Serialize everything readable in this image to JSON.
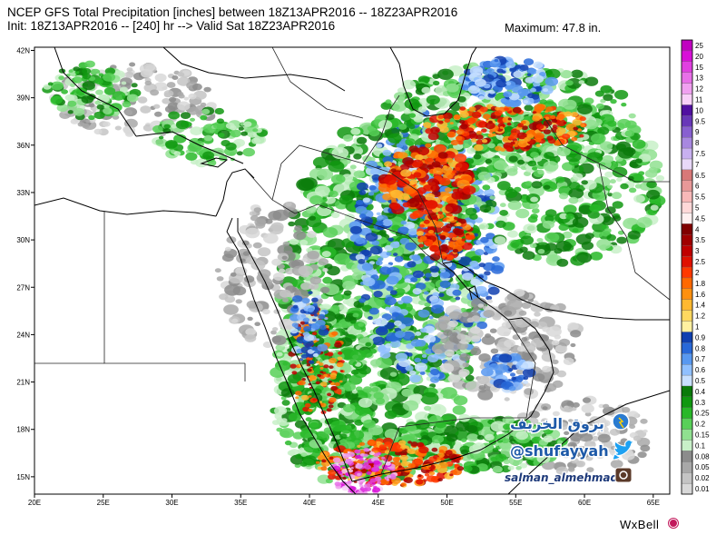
{
  "header": {
    "title_line1": "NCEP GFS Total Precipitation [inches] between 18Z13APR2016 -- 18Z23APR2016",
    "title_line2": "Init: 18Z13APR2016 -- [240] hr --> Valid Sat 18Z23APR2016",
    "maximum": "Maximum: 47.8 in."
  },
  "axes": {
    "lat_labels": [
      "42N",
      "39N",
      "36N",
      "33N",
      "30N",
      "27N",
      "24N",
      "21N",
      "18N",
      "15N"
    ],
    "lon_labels": [
      "20E",
      "25E",
      "30E",
      "35E",
      "40E",
      "45E",
      "50E",
      "55E",
      "60E",
      "65E"
    ],
    "lat_values": [
      42,
      39,
      36,
      33,
      30,
      27,
      24,
      21,
      18,
      15
    ],
    "lon_values": [
      20,
      25,
      30,
      35,
      40,
      45,
      50,
      55,
      60,
      65
    ]
  },
  "legend": {
    "levels": [
      "0.01",
      "0.02",
      "0.05",
      "0.08",
      "0.1",
      "0.15",
      "0.2",
      "0.25",
      "0.3",
      "0.4",
      "0.5",
      "0.6",
      "0.7",
      "0.8",
      "0.9",
      "1",
      "1.2",
      "1.4",
      "1.6",
      "1.8",
      "2",
      "2.5",
      "3",
      "3.5",
      "4",
      "4.5",
      "5",
      "5.5",
      "6",
      "6.5",
      "7",
      "7.5",
      "8",
      "9",
      "9.5",
      "10",
      "11",
      "12",
      "13",
      "15",
      "20",
      "25"
    ],
    "colors": [
      "#d8d8d8",
      "#c4c4c4",
      "#a8a8a8",
      "#8c8c8c",
      "#c8f0c8",
      "#90e090",
      "#58d058",
      "#28b828",
      "#109810",
      "#0a7a0a",
      "#c8e0ff",
      "#90c0ff",
      "#5898f0",
      "#2868d8",
      "#1040b0",
      "#fff0a0",
      "#ffd860",
      "#ffb830",
      "#ff9010",
      "#ff6800",
      "#ff3800",
      "#e01000",
      "#c00000",
      "#a00000",
      "#800000",
      "#fff0f0",
      "#ffd8d8",
      "#f8b8b8",
      "#e89898",
      "#d87878",
      "#e8d8f8",
      "#c8b0f0",
      "#a888e0",
      "#8860d0",
      "#6838b8",
      "#5010a0",
      "#f8d0f8",
      "#f0a0f0",
      "#e870e8",
      "#e040e0",
      "#d810d8",
      "#c000c0"
    ]
  },
  "watermark": {
    "arabic": "بروق الخريف",
    "twitter": "@shufayyah",
    "instagram": "salman_almehmadi"
  },
  "brand": "WxBell"
}
